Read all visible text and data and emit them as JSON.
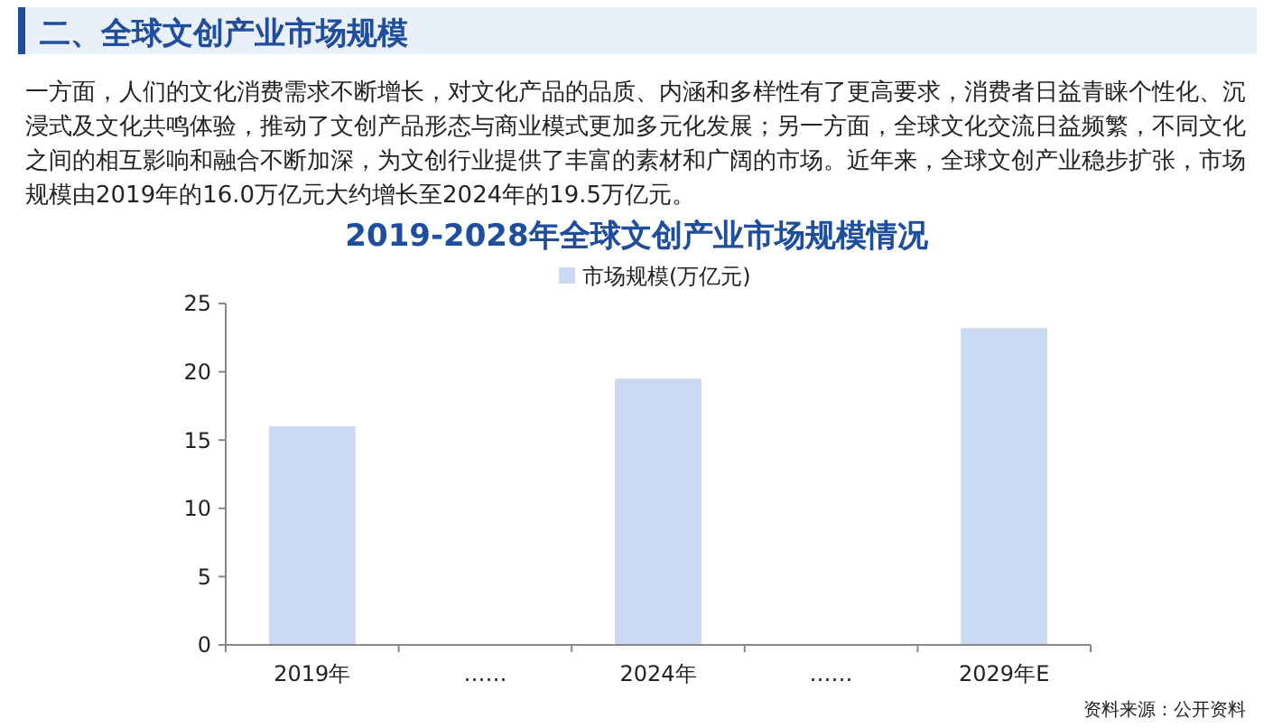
{
  "chart_data": {
    "type": "bar",
    "title": "二、全球文创产业市场规模",
    "subtitle": "一方面，人们的文化消费需求不断增长，对文化产品的品质、内涵和多样性有了更高要求，消费者日益青睐个性化、沉浸式及文化共鸣体验，推动了文创产品形态与商业模式更加多元化发展；另一方面，全球文化交流日益频繁，不同文化之间的相互影响和融合不断加深，为文创行业提供了丰富的素材和广阔的市场。近年来，全球文创产业稳步扩张，市场规模由2019年的16.0万亿元大约增长至2024年的19.5万亿元。",
    "annotations": [
      "2019-2028年全球文创产业市场规模情况",
      "资料来源：公开资料"
    ],
    "categories": [
      "2019年",
      "……",
      "2024年",
      "……",
      "2029年E"
    ],
    "series": [
      {
        "name": "市场规模(万亿元)",
        "color": "#c9daf2",
        "values": [
          16.0,
          null,
          19.5,
          null,
          23.2
        ]
      }
    ],
    "ylim": [
      0,
      25
    ],
    "yticks": [
      0,
      5,
      10,
      15,
      20,
      25
    ],
    "grid": false,
    "legend": "top"
  }
}
